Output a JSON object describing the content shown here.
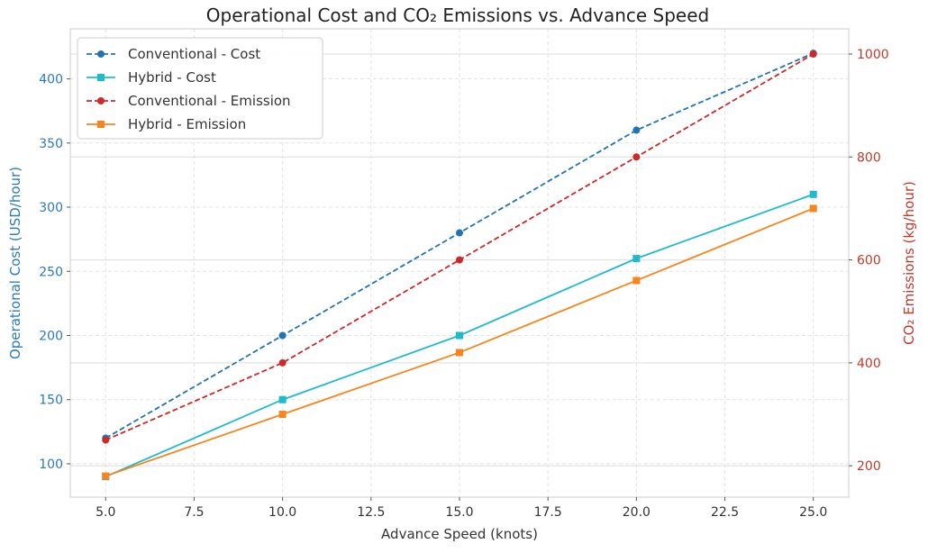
{
  "chart_data": {
    "type": "line",
    "title": "Operational Cost and CO₂ Emissions vs. Advance Speed",
    "xlabel": "Advance Speed (knots)",
    "ylabel_left": "Operational Cost (USD/hour)",
    "ylabel_right": "CO₂ Emissions (kg/hour)",
    "x": [
      5,
      10,
      15,
      20,
      25
    ],
    "xlim": [
      4.0,
      26.0
    ],
    "ylim_left": [
      74,
      439
    ],
    "ylim_right": [
      139,
      1049
    ],
    "xticks": [
      "5.0",
      "7.5",
      "10.0",
      "12.5",
      "15.0",
      "17.5",
      "20.0",
      "22.5",
      "25.0"
    ],
    "yticks_left": [
      "100",
      "150",
      "200",
      "250",
      "300",
      "350",
      "400"
    ],
    "yticks_right": [
      "200",
      "400",
      "600",
      "800",
      "1000"
    ],
    "grid": true,
    "legend_placement": "top-left",
    "colors": {
      "left_axis": "#2b7bb9",
      "right_axis": "#c0392b"
    },
    "series": [
      {
        "name": "Conventional - Cost",
        "axis": "left",
        "values": [
          120,
          200,
          280,
          360,
          420
        ],
        "color": "#2274b0",
        "dash": true,
        "marker": "circle"
      },
      {
        "name": "Hybrid - Cost",
        "axis": "left",
        "values": [
          90,
          150,
          200,
          260,
          310
        ],
        "color": "#1fbbcc",
        "dash": false,
        "marker": "square"
      },
      {
        "name": "Conventional - Emission",
        "axis": "right",
        "values": [
          250,
          400,
          600,
          800,
          1000
        ],
        "color": "#cc2a2a",
        "dash": true,
        "marker": "circle"
      },
      {
        "name": "Hybrid - Emission",
        "axis": "right",
        "values": [
          180,
          300,
          420,
          560,
          700
        ],
        "color": "#f5861f",
        "dash": false,
        "marker": "square"
      }
    ]
  }
}
